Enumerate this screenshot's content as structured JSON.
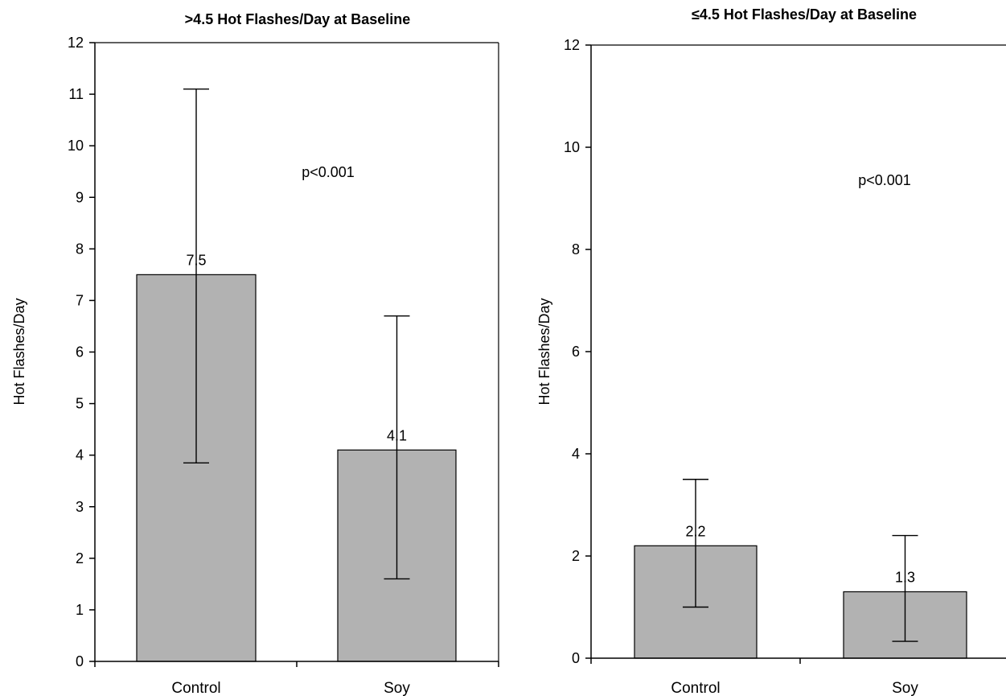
{
  "chart_data": [
    {
      "type": "bar",
      "title": ">4.5 Hot Flashes/Day at Baseline",
      "xlabel": "",
      "ylabel": "Hot Flashes/Day",
      "ylim": [
        0,
        12
      ],
      "yticks": [
        0,
        1,
        2,
        3,
        4,
        5,
        6,
        7,
        8,
        9,
        10,
        11,
        12
      ],
      "categories": [
        "Control",
        "Soy"
      ],
      "values": [
        7.5,
        4.1
      ],
      "value_labels": [
        "7.5",
        "4.1"
      ],
      "error_low": [
        3.85,
        1.6
      ],
      "error_high": [
        11.1,
        6.7
      ],
      "annotation": "p<0.001",
      "bar_color": "#b2b2b2",
      "grid": false
    },
    {
      "type": "bar",
      "title": "≤4.5 Hot Flashes/Day at Baseline",
      "xlabel": "",
      "ylabel": "Hot Flashes/Day",
      "ylim": [
        0,
        12
      ],
      "yticks": [
        0,
        2,
        4,
        6,
        8,
        10,
        12
      ],
      "categories": [
        "Control",
        "Soy"
      ],
      "values": [
        2.2,
        1.3
      ],
      "value_labels": [
        "2.2",
        "1.3"
      ],
      "error_low": [
        1.0,
        0.33
      ],
      "error_high": [
        3.5,
        2.4
      ],
      "annotation": "p<0.001",
      "bar_color": "#b2b2b2",
      "grid": false
    }
  ]
}
